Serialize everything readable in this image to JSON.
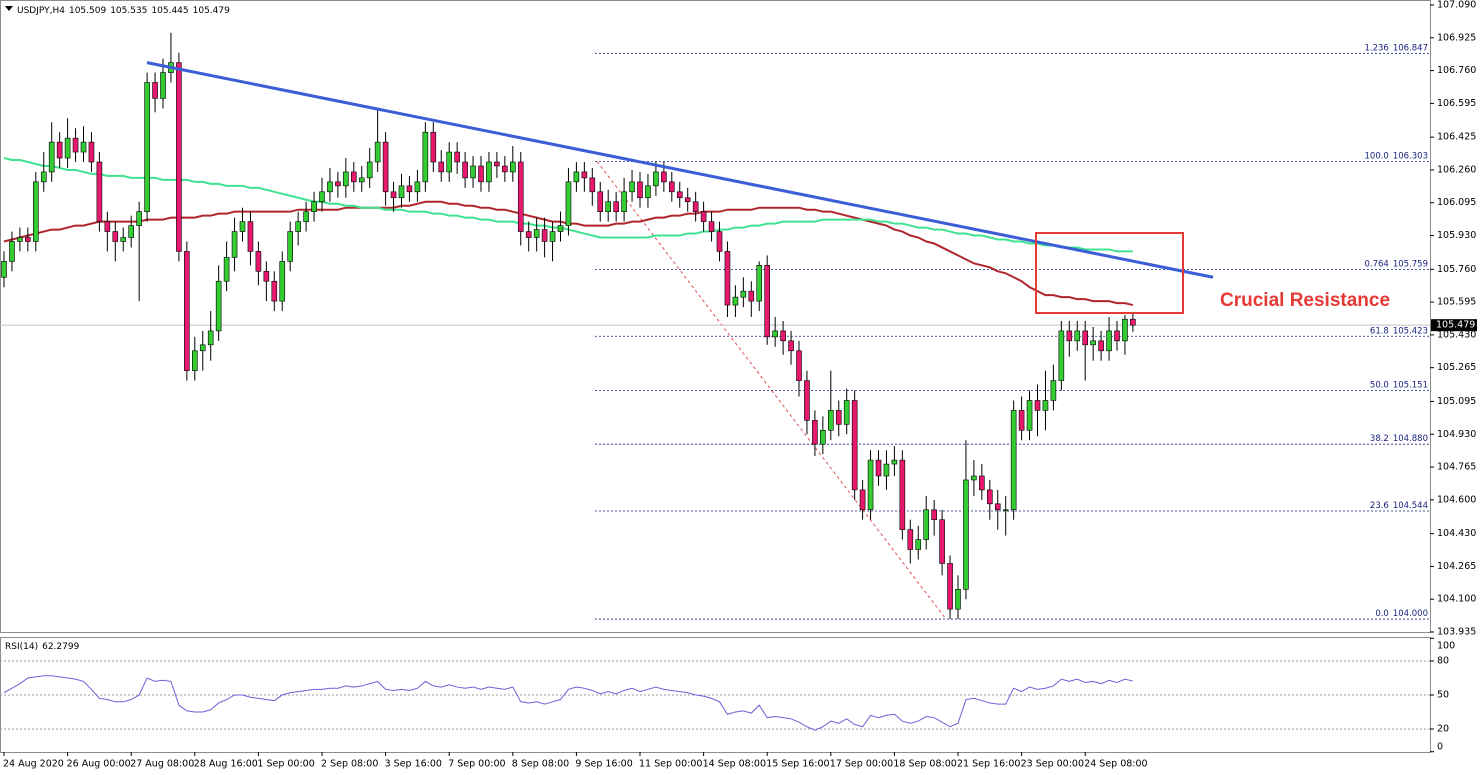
{
  "chart_data": {
    "type": "candlestick",
    "symbol": "USDJPY,H4",
    "categories": [
      "24 Aug 2020",
      null,
      null,
      null,
      null,
      null,
      null,
      null,
      "26 Aug 00:00",
      null,
      null,
      null,
      null,
      null,
      null,
      null,
      "27 Aug 08:00",
      null,
      null,
      null,
      null,
      null,
      null,
      null,
      "28 Aug 16:00",
      null,
      null,
      null,
      null,
      null,
      null,
      null,
      "1 Sep 00:00",
      null,
      null,
      null,
      null,
      null,
      null,
      null,
      "2 Sep 08:00",
      null,
      null,
      null,
      null,
      null,
      null,
      null,
      "3 Sep 16:00",
      null,
      null,
      null,
      null,
      null,
      null,
      null,
      "7 Sep 00:00",
      null,
      null,
      null,
      null,
      null,
      null,
      null,
      "8 Sep 08:00",
      null,
      null,
      null,
      null,
      null,
      null,
      null,
      "9 Sep 16:00",
      null,
      null,
      null,
      null,
      null,
      null,
      null,
      "11 Sep 00:00",
      null,
      null,
      null,
      null,
      null,
      null,
      null,
      "14 Sep 08:00",
      null,
      null,
      null,
      null,
      null,
      null,
      null,
      "15 Sep 16:00",
      null,
      null,
      null,
      null,
      null,
      null,
      null,
      "17 Sep 00:00",
      null,
      null,
      null,
      null,
      null,
      null,
      null,
      "18 Sep 08:00",
      null,
      null,
      null,
      null,
      null,
      null,
      null,
      "21 Sep 16:00",
      null,
      null,
      null,
      null,
      null,
      null,
      null,
      "23 Sep 00:00",
      null,
      null,
      null,
      null,
      null,
      null,
      null,
      "24 Sep 08:00",
      null,
      null,
      null,
      null,
      null,
      null
    ],
    "open": [
      105.72,
      105.8,
      105.9,
      105.92,
      105.9,
      106.2,
      106.25,
      106.4,
      106.32,
      106.42,
      106.35,
      106.4,
      106.3,
      106.0,
      105.95,
      105.9,
      105.92,
      105.98,
      106.05,
      106.7,
      106.62,
      106.75,
      106.8,
      105.85,
      105.25,
      105.35,
      105.38,
      105.45,
      105.7,
      105.82,
      105.95,
      106.0,
      105.85,
      105.75,
      105.7,
      105.6,
      105.8,
      105.95,
      106.0,
      106.05,
      106.1,
      106.15,
      106.2,
      106.18,
      106.25,
      106.2,
      106.22,
      106.3,
      106.4,
      106.15,
      106.12,
      106.18,
      106.15,
      106.2,
      106.45,
      106.3,
      106.25,
      106.35,
      106.3,
      106.22,
      106.28,
      106.2,
      106.3,
      106.28,
      106.25,
      106.3,
      105.95,
      105.92,
      105.96,
      105.9,
      105.95,
      105.98,
      106.2,
      106.25,
      106.22,
      106.15,
      106.05,
      106.1,
      106.05,
      106.15,
      106.2,
      106.12,
      106.18,
      106.25,
      106.2,
      106.15,
      106.12,
      106.1,
      106.05,
      106.0,
      105.95,
      105.85,
      105.58,
      105.62,
      105.65,
      105.6,
      105.78,
      105.42,
      105.45,
      105.4,
      105.35,
      105.2,
      105.0,
      104.88,
      104.95,
      105.05,
      104.98,
      105.1,
      104.65,
      104.55,
      104.8,
      104.72,
      104.78,
      104.8,
      104.45,
      104.35,
      104.4,
      104.55,
      104.5,
      104.28,
      104.05,
      104.15,
      104.7,
      104.72,
      104.65,
      104.58,
      104.55,
      104.55,
      105.05,
      104.95,
      105.1,
      105.05,
      105.1,
      105.2,
      105.45,
      105.4,
      105.45,
      105.38,
      105.4,
      105.35,
      105.45,
      105.4,
      105.509
    ],
    "high": [
      105.85,
      105.95,
      105.97,
      105.97,
      106.25,
      106.35,
      106.5,
      106.45,
      106.52,
      106.47,
      106.48,
      106.45,
      106.35,
      106.05,
      106.0,
      105.97,
      106.03,
      106.1,
      106.75,
      106.75,
      106.82,
      106.95,
      106.85,
      105.9,
      105.42,
      105.45,
      105.55,
      105.78,
      105.9,
      106.02,
      106.07,
      106.05,
      105.9,
      105.8,
      105.75,
      105.85,
      106.0,
      106.05,
      106.1,
      106.15,
      106.22,
      106.27,
      106.25,
      106.32,
      106.3,
      106.28,
      106.37,
      106.56,
      106.45,
      106.2,
      106.24,
      106.23,
      106.26,
      106.5,
      106.5,
      106.36,
      106.4,
      106.4,
      106.35,
      106.33,
      106.33,
      106.35,
      106.35,
      106.33,
      106.38,
      106.35,
      106.0,
      106.02,
      106.02,
      106.0,
      106.05,
      106.27,
      106.3,
      106.3,
      106.27,
      106.2,
      106.16,
      106.15,
      106.22,
      106.26,
      106.25,
      106.24,
      106.3,
      106.3,
      106.25,
      106.2,
      106.17,
      106.15,
      106.1,
      106.05,
      106.0,
      105.9,
      105.68,
      105.72,
      105.7,
      105.8,
      105.83,
      105.52,
      105.5,
      105.45,
      105.4,
      105.25,
      105.05,
      105.02,
      105.25,
      105.1,
      105.16,
      105.15,
      104.7,
      104.85,
      104.85,
      104.85,
      104.87,
      104.85,
      104.5,
      104.47,
      104.62,
      104.6,
      104.55,
      104.32,
      104.22,
      104.9,
      104.8,
      104.78,
      104.7,
      104.65,
      104.62,
      105.1,
      105.12,
      105.15,
      105.18,
      105.25,
      105.28,
      105.5,
      105.5,
      105.5,
      105.5,
      105.47,
      105.45,
      105.52,
      105.5,
      105.53,
      105.535
    ],
    "low": [
      105.67,
      105.75,
      105.85,
      105.85,
      105.85,
      106.15,
      106.2,
      106.27,
      106.27,
      106.3,
      106.3,
      106.25,
      105.95,
      105.85,
      105.8,
      105.85,
      105.87,
      105.6,
      106.0,
      106.55,
      106.57,
      106.7,
      105.8,
      105.2,
      105.2,
      105.25,
      105.3,
      105.4,
      105.65,
      105.75,
      105.9,
      105.78,
      105.68,
      105.6,
      105.55,
      105.55,
      105.75,
      105.88,
      105.95,
      106.0,
      106.05,
      106.1,
      106.12,
      106.12,
      106.15,
      106.15,
      106.17,
      106.25,
      106.08,
      106.05,
      106.07,
      106.1,
      106.1,
      106.15,
      106.25,
      106.2,
      106.2,
      106.24,
      106.17,
      106.17,
      106.15,
      106.15,
      106.22,
      106.2,
      106.2,
      105.88,
      105.85,
      105.85,
      105.82,
      105.8,
      105.9,
      105.93,
      106.15,
      106.15,
      106.08,
      106.0,
      106.0,
      106.0,
      106.0,
      106.1,
      106.07,
      106.07,
      106.13,
      106.15,
      106.1,
      106.07,
      106.05,
      106.0,
      105.95,
      105.9,
      105.8,
      105.52,
      105.52,
      105.57,
      105.52,
      105.55,
      105.38,
      105.37,
      105.33,
      105.28,
      105.12,
      104.93,
      104.82,
      104.83,
      104.9,
      104.92,
      104.93,
      104.6,
      104.5,
      104.5,
      104.67,
      104.65,
      104.72,
      104.4,
      104.28,
      104.3,
      104.35,
      104.42,
      104.22,
      104.0,
      104.0,
      104.1,
      104.62,
      104.6,
      104.5,
      104.45,
      104.42,
      104.5,
      104.9,
      104.9,
      104.92,
      104.95,
      105.05,
      105.15,
      105.32,
      105.35,
      105.2,
      105.3,
      105.3,
      105.3,
      105.35,
      105.33,
      105.445
    ],
    "close": [
      105.8,
      105.9,
      105.92,
      105.9,
      106.2,
      106.25,
      106.4,
      106.32,
      106.42,
      106.35,
      106.4,
      106.3,
      106.0,
      105.95,
      105.9,
      105.92,
      105.98,
      106.05,
      106.7,
      106.62,
      106.75,
      106.8,
      105.85,
      105.25,
      105.35,
      105.38,
      105.45,
      105.7,
      105.82,
      105.95,
      106.0,
      105.85,
      105.75,
      105.7,
      105.6,
      105.8,
      105.95,
      106.0,
      106.05,
      106.1,
      106.15,
      106.2,
      106.18,
      106.25,
      106.2,
      106.22,
      106.3,
      106.4,
      106.15,
      106.12,
      106.18,
      106.15,
      106.2,
      106.45,
      106.3,
      106.25,
      106.35,
      106.3,
      106.22,
      106.28,
      106.2,
      106.3,
      106.28,
      106.25,
      106.3,
      105.95,
      105.92,
      105.96,
      105.9,
      105.95,
      105.98,
      106.2,
      106.25,
      106.22,
      106.15,
      106.05,
      106.1,
      106.05,
      106.15,
      106.2,
      106.12,
      106.18,
      106.25,
      106.2,
      106.15,
      106.12,
      106.1,
      106.05,
      106.0,
      105.95,
      105.85,
      105.58,
      105.62,
      105.65,
      105.6,
      105.78,
      105.42,
      105.45,
      105.4,
      105.35,
      105.2,
      105.0,
      104.88,
      104.95,
      105.05,
      104.98,
      105.1,
      104.65,
      104.55,
      104.8,
      104.72,
      104.78,
      104.8,
      104.45,
      104.35,
      104.4,
      104.55,
      104.5,
      104.28,
      104.05,
      104.15,
      104.7,
      104.72,
      104.65,
      104.58,
      104.55,
      104.55,
      105.05,
      104.95,
      105.1,
      105.05,
      105.1,
      105.2,
      105.45,
      105.4,
      105.45,
      105.38,
      105.4,
      105.35,
      105.45,
      105.4,
      105.509,
      105.479
    ],
    "up_color": "#33cc33",
    "down_color": "#e6196e",
    "ylim": [
      103.935,
      107.09
    ],
    "yticks": [
      {
        "value": 107.09,
        "label": "107.090"
      },
      {
        "value": 106.925,
        "label": "106.925"
      },
      {
        "value": 106.76,
        "label": "106.760"
      },
      {
        "value": 106.595,
        "label": "106.595"
      },
      {
        "value": 106.425,
        "label": "106.425"
      },
      {
        "value": 106.26,
        "label": "106.260"
      },
      {
        "value": 106.095,
        "label": "106.095"
      },
      {
        "value": 105.93,
        "label": "105.930"
      },
      {
        "value": 105.76,
        "label": "105.760"
      },
      {
        "value": 105.595,
        "label": "105.595"
      },
      {
        "value": 105.43,
        "label": "105.430"
      },
      {
        "value": 105.265,
        "label": "105.265"
      },
      {
        "value": 105.095,
        "label": "105.095"
      },
      {
        "value": 104.93,
        "label": "104.930"
      },
      {
        "value": 104.765,
        "label": "104.765"
      },
      {
        "value": 104.6,
        "label": "104.600"
      },
      {
        "value": 104.43,
        "label": "104.430"
      },
      {
        "value": 104.265,
        "label": "104.265"
      },
      {
        "value": 104.1,
        "label": "104.100"
      },
      {
        "value": 103.935,
        "label": "103.935"
      }
    ],
    "grid": false,
    "moving_averages": [
      {
        "color": "#b0262c",
        "values": [
          105.9,
          105.91,
          105.92,
          105.93,
          105.94,
          105.95,
          105.96,
          105.96,
          105.97,
          105.98,
          105.98,
          105.99,
          106.0,
          106.0,
          106.0,
          106.0,
          106.0,
          106.0,
          106.01,
          106.01,
          106.01,
          106.02,
          106.02,
          106.02,
          106.02,
          106.03,
          106.03,
          106.04,
          106.04,
          106.05,
          106.05,
          106.05,
          106.05,
          106.05,
          106.05,
          106.05,
          106.05,
          106.06,
          106.06,
          106.06,
          106.06,
          106.06,
          106.06,
          106.07,
          106.07,
          106.07,
          106.07,
          106.07,
          106.07,
          106.07,
          106.08,
          106.08,
          106.09,
          106.1,
          106.1,
          106.1,
          106.09,
          106.09,
          106.08,
          106.08,
          106.07,
          106.07,
          106.06,
          106.06,
          106.05,
          106.04,
          106.03,
          106.02,
          106.01,
          106.0,
          106.0,
          105.99,
          105.99,
          105.98,
          105.98,
          105.98,
          105.98,
          105.99,
          105.99,
          106.0,
          106.0,
          106.01,
          106.02,
          106.02,
          106.03,
          106.03,
          106.04,
          106.04,
          106.05,
          106.05,
          106.05,
          106.06,
          106.06,
          106.06,
          106.06,
          106.07,
          106.07,
          106.07,
          106.07,
          106.07,
          106.07,
          106.06,
          106.06,
          106.05,
          106.05,
          106.04,
          106.03,
          106.02,
          106.01,
          106.0,
          105.99,
          105.98,
          105.96,
          105.95,
          105.93,
          105.92,
          105.9,
          105.89,
          105.87,
          105.85,
          105.83,
          105.81,
          105.79,
          105.78,
          105.77,
          105.75,
          105.74,
          105.72,
          105.7,
          105.67,
          105.65,
          105.63,
          105.63,
          105.62,
          105.62,
          105.61,
          105.61,
          105.6,
          105.6,
          105.6,
          105.59,
          105.59,
          105.58
        ]
      },
      {
        "color": "#3fe38f",
        "values": [
          106.32,
          106.31,
          106.31,
          106.3,
          106.29,
          106.28,
          106.28,
          106.27,
          106.26,
          106.26,
          106.25,
          106.24,
          106.24,
          106.23,
          106.23,
          106.23,
          106.22,
          106.22,
          106.22,
          106.22,
          106.21,
          106.21,
          106.21,
          106.21,
          106.2,
          106.2,
          106.19,
          106.19,
          106.18,
          106.18,
          106.18,
          106.17,
          106.17,
          106.16,
          106.15,
          106.14,
          106.13,
          106.12,
          106.11,
          106.1,
          106.1,
          106.09,
          106.09,
          106.08,
          106.08,
          106.07,
          106.07,
          106.07,
          106.06,
          106.06,
          106.06,
          106.05,
          106.05,
          106.05,
          106.04,
          106.04,
          106.03,
          106.03,
          106.02,
          106.02,
          106.01,
          106.01,
          106.0,
          106.0,
          106.0,
          105.99,
          105.99,
          105.98,
          105.98,
          105.97,
          105.97,
          105.96,
          105.95,
          105.94,
          105.93,
          105.92,
          105.92,
          105.92,
          105.92,
          105.92,
          105.92,
          105.92,
          105.93,
          105.93,
          105.93,
          105.93,
          105.94,
          105.94,
          105.95,
          105.95,
          105.96,
          105.96,
          105.97,
          105.97,
          105.98,
          105.98,
          105.99,
          105.99,
          106.0,
          106.0,
          106.0,
          106.0,
          106.0,
          106.01,
          106.01,
          106.01,
          106.01,
          106.01,
          106.01,
          106.01,
          106.0,
          106.0,
          105.99,
          105.99,
          105.98,
          105.97,
          105.97,
          105.96,
          105.96,
          105.95,
          105.94,
          105.94,
          105.93,
          105.93,
          105.92,
          105.91,
          105.91,
          105.9,
          105.9,
          105.89,
          105.89,
          105.88,
          105.88,
          105.87,
          105.87,
          105.87,
          105.86,
          105.86,
          105.86,
          105.86,
          105.85,
          105.85,
          105.85
        ]
      }
    ],
    "trendline": {
      "color": "#3b5ed6",
      "values": [
        106.8,
        105.72
      ]
    },
    "fib_color": "#1a237e",
    "fib_swing_color": "#e05050",
    "fib_levels": [
      {
        "ratio": "1.236",
        "price": {
          "value": 106.847,
          "label": "106.847"
        }
      },
      {
        "ratio": "100.0",
        "price": {
          "value": 106.303,
          "label": "106.303"
        }
      },
      {
        "ratio": "0.764",
        "price": {
          "value": 105.759,
          "label": "105.759"
        }
      },
      {
        "ratio": "61.8",
        "price": {
          "value": 105.423,
          "label": "105.423"
        }
      },
      {
        "ratio": "50.0",
        "price": {
          "value": 105.151,
          "label": "105.151"
        }
      },
      {
        "ratio": "38.2",
        "price": {
          "value": 104.88,
          "label": "104.880"
        }
      },
      {
        "ratio": "23.6",
        "price": {
          "value": 104.544,
          "label": "104.544"
        }
      },
      {
        "ratio": "0.0",
        "price": {
          "value": 104.0,
          "label": "104.000"
        }
      }
    ],
    "annotation": {
      "text": "Crucial Resistance",
      "color": "#e53935"
    },
    "rsi": {
      "label": "RSI(14)",
      "color": "#6f5fd6",
      "ylim": [
        0,
        100
      ],
      "yticks": [
        100,
        80,
        50,
        20,
        0
      ],
      "values": [
        52,
        56,
        60,
        65,
        66,
        67,
        67,
        66,
        65,
        64,
        62,
        55,
        47,
        46,
        44,
        44,
        46,
        50,
        65,
        62,
        63,
        62,
        41,
        36,
        35,
        35,
        37,
        43,
        46,
        50,
        50,
        48,
        47,
        46,
        45,
        50,
        52,
        53,
        54,
        55,
        55,
        56,
        56,
        58,
        57,
        58,
        60,
        62,
        55,
        54,
        55,
        54,
        56,
        62,
        58,
        57,
        59,
        57,
        56,
        57,
        55,
        57,
        56,
        55,
        57,
        44,
        43,
        44,
        42,
        44,
        46,
        55,
        57,
        56,
        54,
        51,
        53,
        51,
        54,
        56,
        53,
        55,
        57,
        55,
        54,
        53,
        52,
        50,
        49,
        47,
        44,
        33,
        35,
        36,
        34,
        41,
        30,
        31,
        30,
        29,
        26,
        22,
        19,
        22,
        27,
        25,
        29,
        24,
        22,
        32,
        30,
        32,
        33,
        27,
        25,
        27,
        31,
        30,
        26,
        22,
        25,
        46,
        47,
        45,
        43,
        42,
        42,
        56,
        53,
        57,
        55,
        56,
        58,
        64,
        62,
        64,
        61,
        62,
        60,
        63,
        61,
        64,
        62.2799
      ]
    }
  }
}
